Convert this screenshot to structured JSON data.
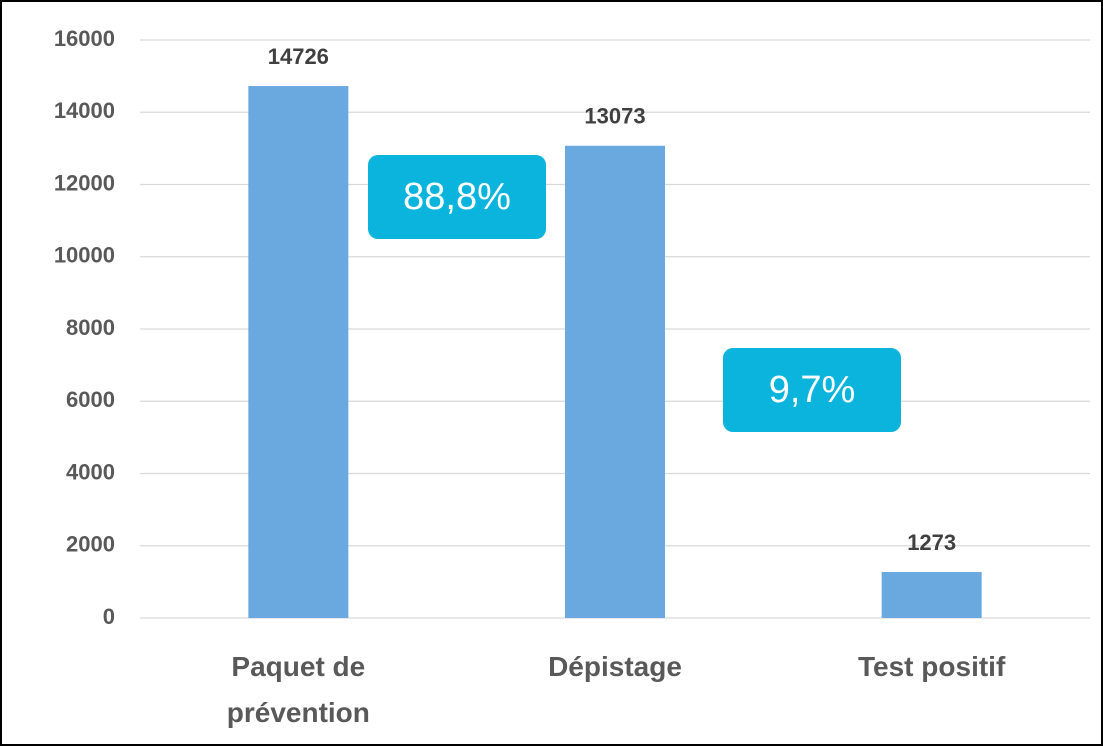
{
  "chart_data": {
    "type": "bar",
    "categories": [
      "Paquet de prévention",
      "Dépistage",
      "Test positif"
    ],
    "values": [
      14726,
      13073,
      1273
    ],
    "color": "#6aa9e0",
    "ylim": [
      0,
      16000
    ],
    "yticks": [
      0,
      2000,
      4000,
      6000,
      8000,
      10000,
      12000,
      14000,
      16000
    ],
    "grid": true,
    "annotations": [
      "88,8%",
      "9,7%"
    ]
  }
}
